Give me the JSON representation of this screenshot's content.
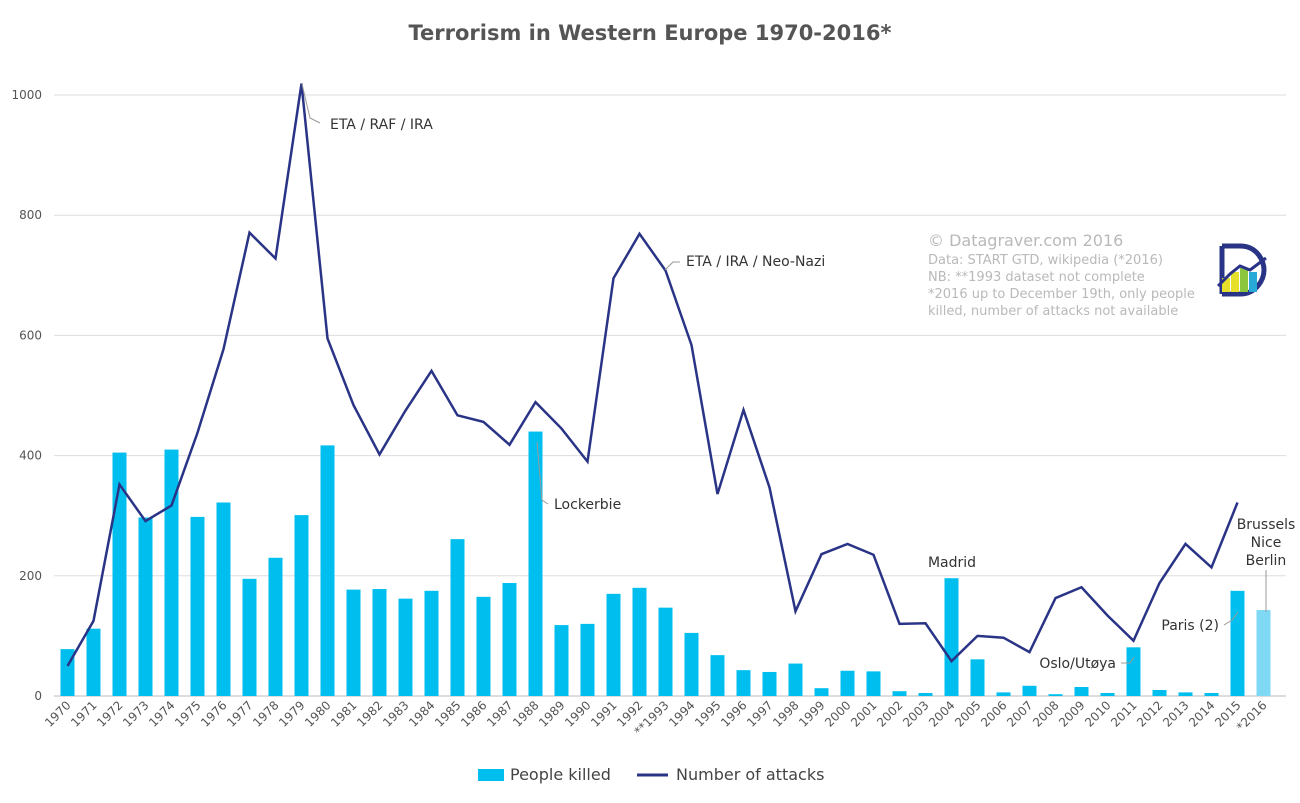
{
  "chart_data": {
    "type": "bar+line",
    "title": "Terrorism in Western Europe 1970-2016*",
    "categories": [
      "1970",
      "1971",
      "1972",
      "1973",
      "1974",
      "1975",
      "1976",
      "1977",
      "1978",
      "1979",
      "1980",
      "1981",
      "1982",
      "1983",
      "1984",
      "1985",
      "1986",
      "1987",
      "1988",
      "1989",
      "1990",
      "1991",
      "1992",
      "**1993",
      "1994",
      "1995",
      "1996",
      "1997",
      "1998",
      "1999",
      "2000",
      "2001",
      "2002",
      "2003",
      "2004",
      "2005",
      "2006",
      "2007",
      "2008",
      "2009",
      "2010",
      "2011",
      "2012",
      "2013",
      "2014",
      "2015",
      "*2016"
    ],
    "ylim": [
      0,
      1100
    ],
    "yticks": [
      0,
      200,
      400,
      600,
      800,
      1000
    ],
    "grid": true,
    "legend_position": "bottom",
    "series": [
      {
        "name": "People killed",
        "type": "bar",
        "color": "#00bfef",
        "highlight_color": "#7fd9f5",
        "values": [
          78,
          112,
          405,
          297,
          410,
          298,
          322,
          195,
          230,
          301,
          417,
          177,
          178,
          162,
          175,
          261,
          165,
          188,
          440,
          118,
          120,
          170,
          180,
          147,
          105,
          68,
          43,
          40,
          54,
          13,
          42,
          41,
          8,
          5,
          196,
          61,
          6,
          17,
          3,
          15,
          5,
          81,
          10,
          6,
          5,
          175,
          143
        ]
      },
      {
        "name": "Number of attacks",
        "type": "line",
        "color": "#2a3486",
        "values": [
          50,
          125,
          352,
          291,
          317,
          438,
          577,
          771,
          728,
          1019,
          595,
          484,
          402,
          475,
          541,
          467,
          456,
          418,
          489,
          445,
          390,
          695,
          769,
          708,
          584,
          336,
          476,
          347,
          141,
          236,
          253,
          235,
          120,
          121,
          58,
          100,
          97,
          73,
          163,
          181,
          134,
          92,
          188,
          253,
          214,
          322,
          null
        ]
      }
    ],
    "annotations": [
      {
        "text": "ETA / RAF / IRA",
        "category": "1979"
      },
      {
        "text": "ETA / IRA / Neo-Nazi",
        "category": "**1993"
      },
      {
        "text": "Lockerbie",
        "category": "1988"
      },
      {
        "text": "Madrid",
        "category": "2004"
      },
      {
        "text": "Oslo/Utøya",
        "category": "2011"
      },
      {
        "text": "Paris (2)",
        "category": "2015"
      },
      {
        "text": "Brussels",
        "category": "*2016"
      },
      {
        "text": "Nice",
        "category": "*2016"
      },
      {
        "text": "Berlin",
        "category": "*2016"
      }
    ]
  },
  "credits": {
    "copyright": "© Datagraver.com 2016",
    "line1": "Data: START GTD, wikipedia (*2016)",
    "line2": "NB: **1993 dataset not complete",
    "line3": "*2016 up to December 19th, only people",
    "line4": "killed, number of attacks not available"
  },
  "logo": {
    "letter": "D",
    "colors": [
      "#e6e02a",
      "#8cc63f",
      "#29a9d6",
      "#2a3486"
    ]
  }
}
